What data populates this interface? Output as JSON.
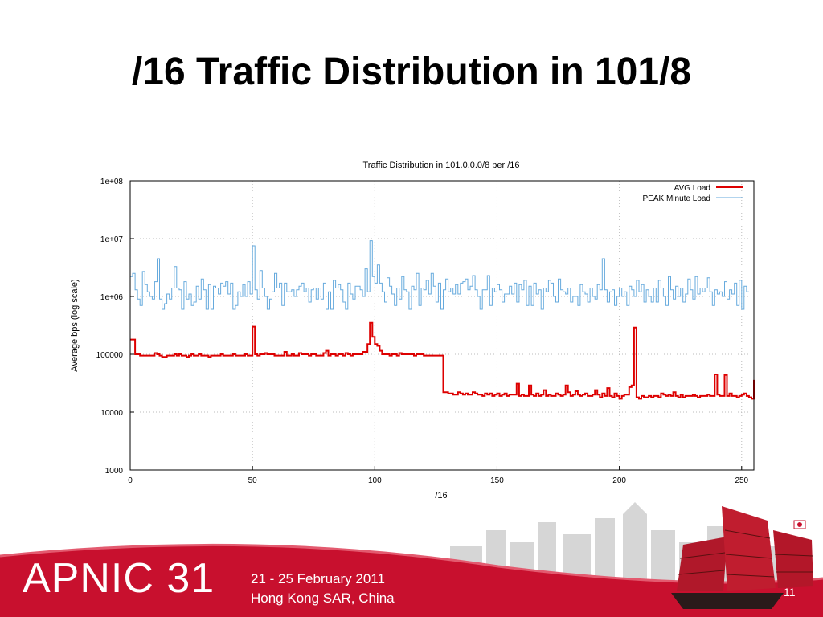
{
  "slide": {
    "title": "/16 Traffic Distribution in 101/8",
    "page_number": "11"
  },
  "footer": {
    "logo_text": "APNIC 31",
    "dates": "21 - 25 February 2011",
    "location": "Hong Kong SAR, China",
    "accent_color": "#c8102e"
  },
  "chart_data": {
    "type": "line",
    "title": "Traffic Distribution in 101.0.0.0/8 per /16",
    "xlabel": "/16",
    "ylabel": "Average bps (log scale)",
    "xlim": [
      0,
      255
    ],
    "ylim": [
      1000,
      100000000
    ],
    "yscale": "log",
    "grid": true,
    "legend_position": "top-right",
    "x_ticks": [
      0,
      50,
      100,
      150,
      200,
      250
    ],
    "y_ticks": [
      {
        "value": 1000,
        "label": "1000"
      },
      {
        "value": 10000,
        "label": "10000"
      },
      {
        "value": 100000,
        "label": "100000"
      },
      {
        "value": 1000000,
        "label": "1e+06"
      },
      {
        "value": 10000000,
        "label": "1e+07"
      },
      {
        "value": 100000000,
        "label": "1e+08"
      }
    ],
    "series": [
      {
        "name": "AVG Load",
        "color": "#dd0000",
        "style": "step",
        "values": [
          180000,
          180000,
          100000,
          100000,
          95000,
          95000,
          95000,
          95000,
          95000,
          95000,
          105000,
          100000,
          95000,
          90000,
          90000,
          95000,
          95000,
          95000,
          100000,
          95000,
          100000,
          95000,
          95000,
          90000,
          95000,
          100000,
          95000,
          95000,
          100000,
          95000,
          95000,
          95000,
          90000,
          95000,
          95000,
          95000,
          95000,
          100000,
          95000,
          95000,
          95000,
          95000,
          100000,
          95000,
          95000,
          95000,
          95000,
          100000,
          95000,
          95000,
          300000,
          100000,
          95000,
          100000,
          100000,
          105000,
          100000,
          100000,
          100000,
          95000,
          95000,
          95000,
          95000,
          110000,
          95000,
          95000,
          100000,
          95000,
          95000,
          105000,
          100000,
          100000,
          100000,
          95000,
          100000,
          100000,
          95000,
          95000,
          95000,
          105000,
          115000,
          95000,
          100000,
          100000,
          95000,
          100000,
          100000,
          95000,
          105000,
          100000,
          95000,
          100000,
          100000,
          100000,
          100000,
          110000,
          110000,
          150000,
          350000,
          200000,
          150000,
          140000,
          115000,
          100000,
          100000,
          100000,
          95000,
          100000,
          100000,
          95000,
          105000,
          100000,
          100000,
          100000,
          100000,
          100000,
          95000,
          100000,
          100000,
          100000,
          95000,
          95000,
          95000,
          95000,
          95000,
          95000,
          95000,
          95000,
          22000,
          22000,
          21000,
          21000,
          20000,
          20000,
          22000,
          21000,
          20000,
          21000,
          20000,
          20000,
          22000,
          21000,
          20000,
          20000,
          19000,
          21000,
          20000,
          21000,
          19000,
          20000,
          21000,
          19000,
          20000,
          21000,
          19000,
          20000,
          20000,
          20000,
          31000,
          19000,
          20000,
          19000,
          19000,
          29000,
          20000,
          19000,
          21000,
          19000,
          20000,
          24000,
          19000,
          20000,
          19000,
          19000,
          21000,
          20000,
          19000,
          20000,
          29000,
          22000,
          19000,
          20000,
          23000,
          20000,
          19000,
          20000,
          21000,
          19000,
          19000,
          20000,
          24000,
          20000,
          18000,
          21000,
          19000,
          26000,
          19000,
          18000,
          21000,
          19000,
          17000,
          19000,
          20000,
          20000,
          27000,
          29000,
          290000,
          18000,
          17000,
          19000,
          18000,
          18000,
          19000,
          18000,
          19000,
          19000,
          18000,
          21000,
          20000,
          19000,
          20000,
          19000,
          22000,
          19000,
          18000,
          20000,
          18000,
          19000,
          19000,
          19000,
          20000,
          19000,
          18000,
          19000,
          19000,
          19000,
          20000,
          19000,
          19000,
          45000,
          20000,
          19000,
          19000,
          44000,
          19000,
          21000,
          19000,
          19000,
          18000,
          19000,
          20000,
          21000,
          19000,
          18000,
          17000,
          18000,
          18000,
          19000,
          20000,
          18000,
          18000,
          36000,
          20000,
          18000,
          21000
        ]
      },
      {
        "name": "PEAK Minute Load",
        "color": "#66aadd",
        "style": "step",
        "values": [
          2200000,
          2500000,
          1300000,
          900000,
          700000,
          2700000,
          1600000,
          1200000,
          1000000,
          900000,
          1800000,
          4500000,
          900000,
          600000,
          750000,
          1100000,
          900000,
          1400000,
          3300000,
          1400000,
          1300000,
          600000,
          1800000,
          900000,
          1100000,
          700000,
          800000,
          1500000,
          900000,
          2000000,
          1300000,
          600000,
          1600000,
          600000,
          1500000,
          1400000,
          1100000,
          1700000,
          1500000,
          1800000,
          1100000,
          1700000,
          600000,
          700000,
          1200000,
          1000000,
          1600000,
          1000000,
          1800000,
          1100000,
          7500000,
          1300000,
          900000,
          2800000,
          1400000,
          1000000,
          600000,
          900000,
          1200000,
          2500000,
          1400000,
          1700000,
          700000,
          1700000,
          1200000,
          1200000,
          1300000,
          1000000,
          1300000,
          1500000,
          1700000,
          1200000,
          1400000,
          800000,
          1300000,
          1400000,
          900000,
          1400000,
          900000,
          1700000,
          600000,
          1200000,
          600000,
          1900000,
          1400000,
          1600000,
          1300000,
          800000,
          600000,
          1700000,
          1100000,
          900000,
          1500000,
          1500000,
          1300000,
          1000000,
          3000000,
          1200000,
          9200000,
          2200000,
          1700000,
          3500000,
          1700000,
          1200000,
          800000,
          2100000,
          1500000,
          1100000,
          700000,
          1400000,
          900000,
          2200000,
          1300000,
          1200000,
          600000,
          1500000,
          1300000,
          2500000,
          700000,
          1400000,
          1300000,
          1900000,
          1100000,
          2500000,
          1500000,
          800000,
          1700000,
          600000,
          1300000,
          2000000,
          1200000,
          1400000,
          1100000,
          1600000,
          1100000,
          1700000,
          1800000,
          2000000,
          1300000,
          1500000,
          2300000,
          1300000,
          1000000,
          600000,
          1300000,
          1300000,
          2300000,
          700000,
          1400000,
          1200000,
          1600000,
          1300000,
          800000,
          1100000,
          1100000,
          1500000,
          1100000,
          1700000,
          800000,
          1600000,
          1300000,
          1900000,
          700000,
          1500000,
          700000,
          1700000,
          1100000,
          1300000,
          600000,
          1400000,
          1200000,
          1900000,
          1700000,
          1000000,
          800000,
          2000000,
          1300000,
          1200000,
          1100000,
          1400000,
          800000,
          1000000,
          1000000,
          700000,
          1600000,
          1200000,
          1100000,
          800000,
          1400000,
          1000000,
          900000,
          1600000,
          1300000,
          4500000,
          1300000,
          800000,
          1200000,
          1300000,
          700000,
          1000000,
          1400000,
          1000000,
          1200000,
          700000,
          1500000,
          1300000,
          1000000,
          1900000,
          1200000,
          1600000,
          800000,
          1300000,
          1000000,
          800000,
          1400000,
          800000,
          1900000,
          1400000,
          1000000,
          700000,
          2200000,
          1300000,
          900000,
          1500000,
          1000000,
          1400000,
          800000,
          1100000,
          2000000,
          1300000,
          900000,
          2200000,
          1100000,
          1400000,
          1200000,
          1400000,
          2100000,
          1200000,
          700000,
          1300000,
          1100000,
          1200000,
          1000000,
          1800000,
          900000,
          1300000,
          1100000,
          1700000,
          700000,
          1900000,
          600000,
          1500000,
          1200000
        ]
      }
    ]
  }
}
